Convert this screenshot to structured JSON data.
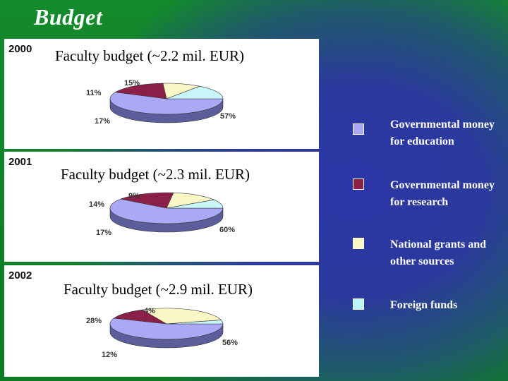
{
  "slide_title": "Budget",
  "colors": {
    "gov_education": "#a9a9f5",
    "gov_research": "#8a1f48",
    "national_grants": "#fbf6c6",
    "foreign_funds": "#c9f7f9",
    "gov_education_side": "#5c5e9c",
    "gov_research_side": "#4f1028",
    "national_grants_side": "#9a9672",
    "foreign_funds_side": "#7aa0a2"
  },
  "legend": [
    {
      "label": "Governmental money for education",
      "color": "#a9a9f5"
    },
    {
      "label": "Governmental money for research",
      "color": "#8a1f48"
    },
    {
      "label": "National grants and other sources",
      "color": "#fbf6c6"
    },
    {
      "label": "Foreign funds",
      "color": "#b9f7fb"
    }
  ],
  "chart_data": [
    {
      "type": "pie",
      "year": "2000",
      "title": "Faculty budget (~2.2 mil. EUR)",
      "categories": [
        "Governmental money for education",
        "Governmental money for research",
        "National grants and other sources",
        "Foreign funds"
      ],
      "values": [
        57,
        17,
        11,
        15
      ],
      "labels": [
        "57%",
        "17%",
        "11%",
        "15%"
      ]
    },
    {
      "type": "pie",
      "year": "2001",
      "title": "Faculty budget (~2.3 mil. EUR)",
      "categories": [
        "Governmental money for education",
        "Governmental money for research",
        "National grants and other sources",
        "Foreign funds"
      ],
      "values": [
        60,
        17,
        14,
        9
      ],
      "labels": [
        "60%",
        "17%",
        "14%",
        "9%"
      ]
    },
    {
      "type": "pie",
      "year": "2002",
      "title": "Faculty budget (~2.9 mil. EUR)",
      "categories": [
        "Governmental money for education",
        "Governmental money for research",
        "National grants and other sources",
        "Foreign funds"
      ],
      "values": [
        56,
        12,
        28,
        4
      ],
      "labels": [
        "56%",
        "12%",
        "28%",
        "4%"
      ]
    }
  ]
}
